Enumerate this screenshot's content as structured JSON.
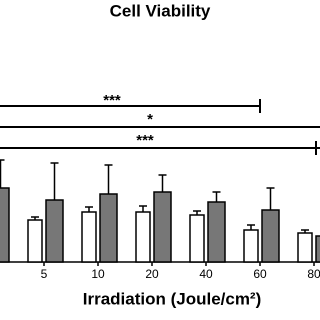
{
  "chart_data": {
    "type": "bar",
    "title": "Cell Viability",
    "x_label": "Irradiation (Joule/cm²)",
    "categories": [
      null,
      "5",
      "10",
      "20",
      "40",
      "60",
      "80"
    ],
    "series": [
      {
        "color": "#ffffff",
        "values": [
          null,
          21,
          25,
          25,
          23.5,
          16,
          14.5
        ],
        "errors": [
          null,
          1.5,
          2.5,
          3,
          2,
          2.5,
          1.5
        ]
      },
      {
        "color": "#777777",
        "values": [
          37,
          31,
          34,
          35,
          30,
          26,
          13
        ],
        "errors": [
          14,
          18.5,
          14.5,
          8.5,
          5,
          11,
          0
        ]
      }
    ],
    "ylim": [
      0,
      100
    ],
    "annotations": [
      {
        "text": "***"
      },
      {
        "text": "*"
      },
      {
        "text": "***"
      }
    ]
  }
}
